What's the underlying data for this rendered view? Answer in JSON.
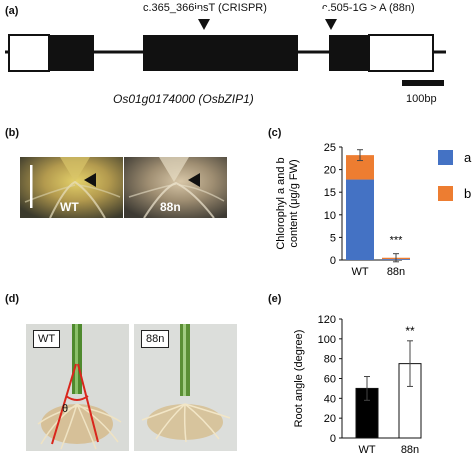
{
  "panels": {
    "a": {
      "label": "(a)",
      "mutations": [
        "c.365_366insT (CRISPR)",
        "c.505-1G > A (88n)"
      ],
      "gene": "Os01g0174000 (OsbZIP1)",
      "scale_bar": "100bp"
    },
    "b": {
      "label": "(b)",
      "wt_label": "WT",
      "mut_label": "88n"
    },
    "c": {
      "label": "(c)",
      "significance": "***",
      "legend": [
        "a",
        "b"
      ]
    },
    "d": {
      "label": "(d)",
      "wt_label": "WT",
      "mut_label": "88n",
      "angle_symbol": "θ"
    },
    "e": {
      "label": "(e)",
      "significance": "**"
    }
  },
  "colors": {
    "chl_a": "#4472c4",
    "chl_b": "#ed7d31",
    "wt_bar": "#000000",
    "mut_bar": "#ffffff",
    "annot_red": "#d9261c"
  },
  "chart_data": [
    {
      "type": "bar",
      "stacked": true,
      "categories": [
        "WT",
        "88n"
      ],
      "series": [
        {
          "name": "a",
          "values": [
            17.8,
            0.2
          ]
        },
        {
          "name": "b",
          "values": [
            5.4,
            0.3
          ]
        }
      ],
      "error": [
        1.2,
        0.9
      ],
      "ylabel": "Chlorophyl a and b content (μg/g FW)",
      "ylim": [
        0,
        25
      ],
      "yticks": [
        0,
        5,
        10,
        15,
        20,
        25
      ],
      "legend_position": "right"
    },
    {
      "type": "bar",
      "categories": [
        "WT",
        "88n"
      ],
      "values": [
        50,
        75
      ],
      "error": [
        12,
        23
      ],
      "ylabel": "Root angle (degree)",
      "ylim": [
        0,
        120
      ],
      "yticks": [
        0,
        20,
        40,
        60,
        80,
        100,
        120
      ]
    }
  ]
}
